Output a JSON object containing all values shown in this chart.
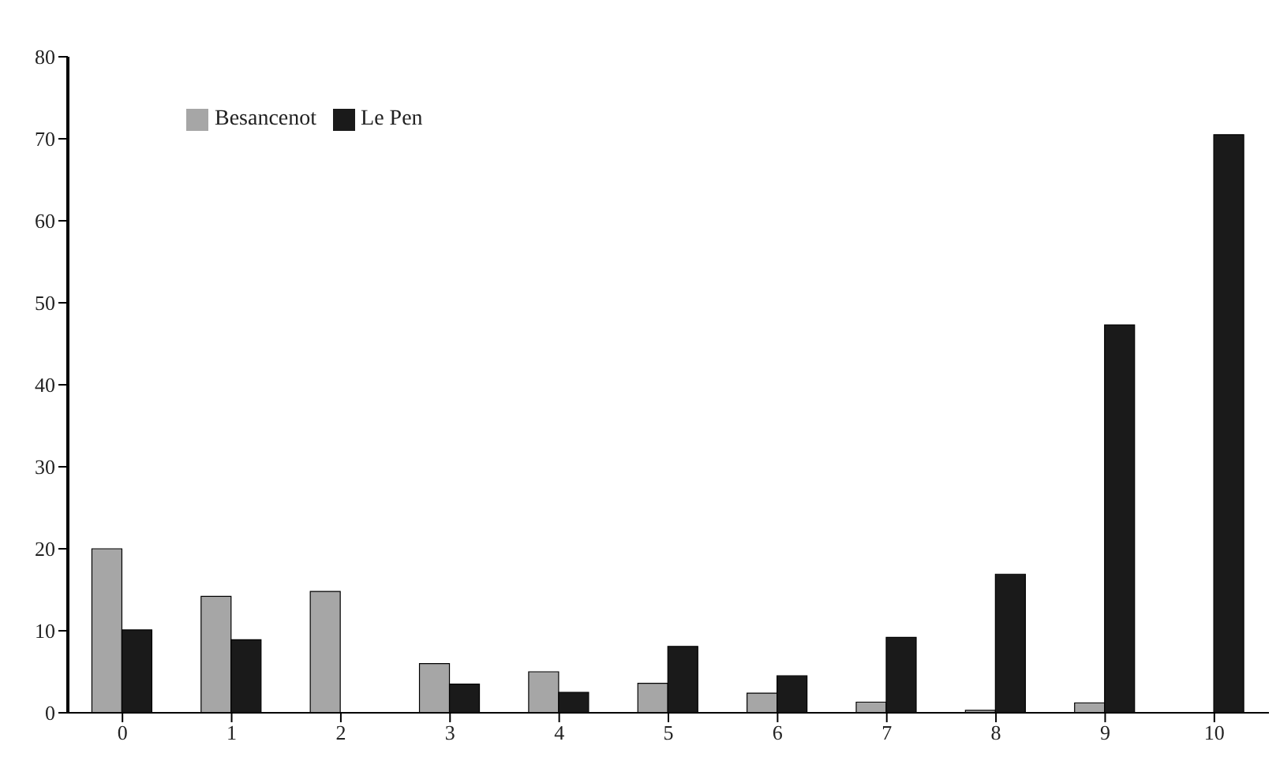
{
  "chart_data": {
    "type": "bar",
    "categories": [
      "0",
      "1",
      "2",
      "3",
      "4",
      "5",
      "6",
      "7",
      "8",
      "9",
      "10"
    ],
    "series": [
      {
        "name": "Besancenot",
        "color": "#a6a6a6",
        "values": [
          20,
          14.2,
          14.8,
          6,
          5,
          3.6,
          2.4,
          1.3,
          0.3,
          1.2,
          0
        ]
      },
      {
        "name": "Le Pen",
        "color": "#1a1a1a",
        "values": [
          10.1,
          8.9,
          0,
          3.5,
          2.5,
          8.1,
          4.5,
          9.2,
          16.9,
          47.3,
          70.5
        ]
      }
    ],
    "ylim": [
      0,
      80
    ],
    "yticks": [
      0,
      10,
      20,
      30,
      40,
      50,
      60,
      70,
      80
    ],
    "grid": false,
    "legend": "top left"
  }
}
